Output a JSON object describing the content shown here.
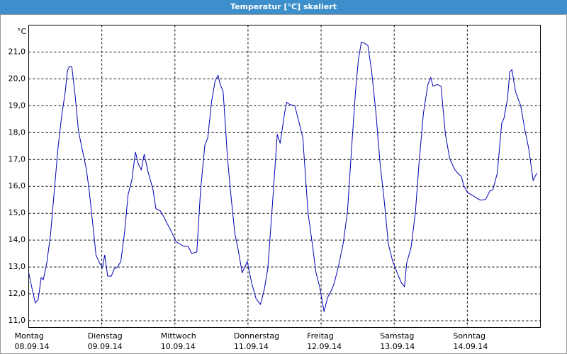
{
  "chart_data": {
    "type": "line",
    "title": "Temperatur [°C] skaliert",
    "y_unit": "°C",
    "color": "#0000b4",
    "grid": true,
    "xlim": [
      0,
      7
    ],
    "ylim": [
      10.75,
      22.0
    ],
    "yticks": [
      {
        "value": 11,
        "label": "11,0"
      },
      {
        "value": 12,
        "label": "12,0"
      },
      {
        "value": 13,
        "label": "13,0"
      },
      {
        "value": 14,
        "label": "14,0"
      },
      {
        "value": 15,
        "label": "15,0"
      },
      {
        "value": 16,
        "label": "16,0"
      },
      {
        "value": 17,
        "label": "17,0"
      },
      {
        "value": 18,
        "label": "18,0"
      },
      {
        "value": 19,
        "label": "19,0"
      },
      {
        "value": 20,
        "label": "20,0"
      },
      {
        "value": 21,
        "label": "21,0"
      }
    ],
    "xticks": [
      {
        "value": 0,
        "label": "Montag"
      },
      {
        "value": 1,
        "label": "Dienstag"
      },
      {
        "value": 2,
        "label": "Mittwoch"
      },
      {
        "value": 3,
        "label": "Donnerstag"
      },
      {
        "value": 4,
        "label": "Freitag"
      },
      {
        "value": 5,
        "label": "Samstag"
      },
      {
        "value": 6,
        "label": "Sonntag"
      }
    ],
    "xtick_dates": [
      "08.09.14",
      "09.09.14",
      "10.09.14",
      "11.09.14",
      "12.09.14",
      "13.09.14",
      "14.09.14"
    ],
    "x": [
      0,
      0.04,
      0.09,
      0.13,
      0.17,
      0.2,
      0.25,
      0.3,
      0.35,
      0.4,
      0.45,
      0.5,
      0.53,
      0.56,
      0.59,
      0.63,
      0.68,
      0.73,
      0.79,
      0.83,
      0.88,
      0.92,
      0.97,
      1.01,
      1.04,
      1.08,
      1.13,
      1.17,
      1.21,
      1.26,
      1.31,
      1.36,
      1.41,
      1.46,
      1.5,
      1.54,
      1.58,
      1.63,
      1.7,
      1.74,
      1.8,
      1.84,
      1.94,
      2.02,
      2.12,
      2.18,
      2.23,
      2.3,
      2.35,
      2.41,
      2.45,
      2.5,
      2.55,
      2.59,
      2.62,
      2.66,
      2.72,
      2.77,
      2.82,
      2.86,
      2.92,
      2.99,
      3.05,
      3.11,
      3.17,
      3.22,
      3.27,
      3.33,
      3.4,
      3.44,
      3.5,
      3.53,
      3.57,
      3.64,
      3.69,
      3.75,
      3.82,
      3.88,
      3.93,
      3.98,
      4.04,
      4.09,
      4.14,
      4.18,
      4.24,
      4.3,
      4.36,
      4.42,
      4.47,
      4.51,
      4.55,
      4.6,
      4.64,
      4.69,
      4.75,
      4.81,
      4.86,
      4.92,
      4.98,
      5.04,
      5.1,
      5.14,
      5.17,
      5.23,
      5.29,
      5.34,
      5.4,
      5.46,
      5.5,
      5.53,
      5.59,
      5.64,
      5.7,
      5.76,
      5.83,
      5.87,
      5.92,
      5.95,
      6.0,
      6.07,
      6.14,
      6.18,
      6.25,
      6.31,
      6.35,
      6.41,
      6.47,
      6.5,
      6.55,
      6.58,
      6.61,
      6.66,
      6.73,
      6.79,
      6.84,
      6.9,
      6.95
    ],
    "values": [
      12.79,
      12.27,
      11.66,
      11.79,
      12.6,
      12.53,
      13.2,
      14.25,
      15.83,
      17.41,
      18.6,
      19.52,
      20.31,
      20.47,
      20.45,
      19.52,
      18.07,
      17.41,
      16.62,
      15.78,
      14.51,
      13.45,
      13.14,
      12.98,
      13.45,
      12.66,
      12.66,
      12.93,
      12.98,
      13.2,
      14.25,
      15.7,
      16.22,
      17.28,
      16.83,
      16.62,
      17.2,
      16.57,
      15.88,
      15.17,
      15.09,
      14.9,
      14.38,
      13.93,
      13.77,
      13.77,
      13.5,
      13.56,
      15.83,
      17.54,
      17.81,
      19.13,
      19.92,
      20.13,
      19.79,
      19.52,
      17.02,
      15.56,
      14.25,
      13.72,
      12.79,
      13.2,
      12.4,
      11.82,
      11.61,
      12.13,
      12.93,
      15.17,
      17.94,
      17.6,
      18.73,
      19.13,
      19.05,
      19.0,
      18.47,
      17.81,
      15.04,
      13.85,
      12.79,
      12.27,
      11.34,
      11.87,
      12.13,
      12.4,
      13.06,
      13.85,
      15.04,
      17.54,
      19.52,
      20.71,
      21.37,
      21.32,
      21.24,
      20.31,
      18.73,
      16.75,
      15.56,
      13.85,
      13.2,
      12.79,
      12.4,
      12.27,
      13.14,
      13.72,
      15.04,
      16.88,
      18.73,
      19.79,
      20.05,
      19.73,
      19.79,
      19.73,
      17.94,
      17.02,
      16.62,
      16.49,
      16.36,
      16.04,
      15.78,
      15.67,
      15.54,
      15.49,
      15.51,
      15.83,
      15.88,
      16.49,
      18.34,
      18.52,
      19.26,
      20.26,
      20.34,
      19.52,
      19.0,
      18.07,
      17.41,
      16.22,
      16.49
    ]
  }
}
